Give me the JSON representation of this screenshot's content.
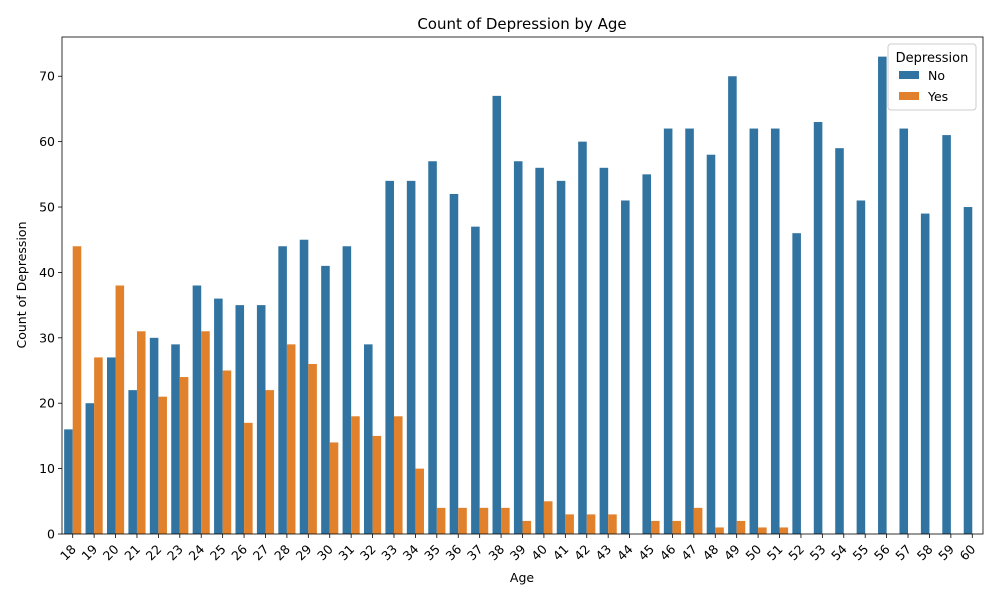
{
  "chart_data": {
    "type": "bar",
    "title": "Count of Depression by Age",
    "xlabel": "Age",
    "ylabel": "Count of Depression",
    "ylim": [
      0,
      76
    ],
    "yticks": [
      0,
      10,
      20,
      30,
      40,
      50,
      60,
      70
    ],
    "grid": false,
    "legend": {
      "title": "Depression",
      "placement": "top-right"
    },
    "categories": [
      "18",
      "19",
      "20",
      "21",
      "22",
      "23",
      "24",
      "25",
      "26",
      "27",
      "28",
      "29",
      "30",
      "31",
      "32",
      "33",
      "34",
      "35",
      "36",
      "37",
      "38",
      "39",
      "40",
      "41",
      "42",
      "43",
      "44",
      "45",
      "46",
      "47",
      "48",
      "49",
      "50",
      "51",
      "52",
      "53",
      "54",
      "55",
      "56",
      "57",
      "58",
      "59",
      "60"
    ],
    "series": [
      {
        "name": "No",
        "color": "#3274a1",
        "values": [
          16,
          20,
          27,
          22,
          30,
          29,
          38,
          36,
          35,
          35,
          44,
          45,
          41,
          44,
          29,
          54,
          54,
          57,
          52,
          47,
          67,
          57,
          56,
          54,
          60,
          56,
          51,
          55,
          62,
          62,
          58,
          70,
          62,
          62,
          46,
          63,
          59,
          51,
          73,
          62,
          49,
          61,
          50
        ]
      },
      {
        "name": "Yes",
        "color": "#e1812c",
        "values": [
          44,
          27,
          38,
          31,
          21,
          24,
          31,
          25,
          17,
          22,
          29,
          26,
          14,
          18,
          15,
          18,
          10,
          4,
          4,
          4,
          4,
          2,
          5,
          3,
          3,
          3,
          0,
          2,
          2,
          4,
          1,
          2,
          1,
          1,
          0,
          0,
          0,
          0,
          0,
          0,
          0,
          0,
          0
        ]
      }
    ]
  }
}
